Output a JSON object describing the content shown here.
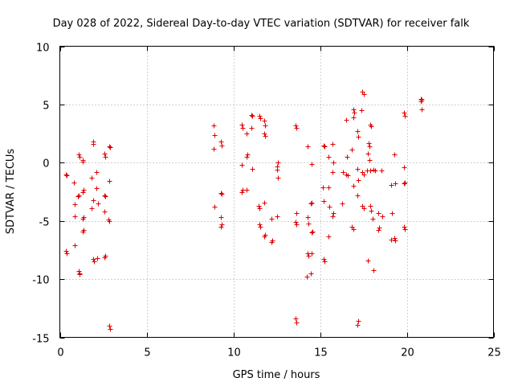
{
  "chart_data": {
    "type": "scatter",
    "title": "Day 028 of 2022, Sidereal Day-to-day VTEC variation (SDTVAR) for receiver falk",
    "xlabel": "GPS time / hours",
    "ylabel": "SDTVAR / TECUs",
    "xlim": [
      0,
      25
    ],
    "ylim": [
      -15,
      10
    ],
    "xticks": [
      0,
      5,
      10,
      15,
      20,
      25
    ],
    "yticks": [
      -15,
      -10,
      -5,
      0,
      5,
      10
    ],
    "x_tick_labels": [
      "0",
      "5",
      "10",
      "15",
      "20",
      "25"
    ],
    "y_tick_labels": [
      "-15",
      "-10",
      "-5",
      "0",
      "5",
      "10"
    ],
    "grid": true,
    "marker": "+",
    "color": "#e00000",
    "series": [
      {
        "name": "SDTVAR",
        "points": [
          [
            0.35,
            -1.0
          ],
          [
            0.4,
            -1.1
          ],
          [
            0.35,
            -7.6
          ],
          [
            0.4,
            -7.8
          ],
          [
            0.8,
            -1.7
          ],
          [
            0.85,
            -3.6
          ],
          [
            0.85,
            -4.6
          ],
          [
            0.85,
            -7.1
          ],
          [
            1.1,
            0.7
          ],
          [
            1.15,
            0.5
          ],
          [
            1.05,
            -2.9
          ],
          [
            1.1,
            -2.8
          ],
          [
            1.1,
            -9.3
          ],
          [
            1.15,
            -9.5
          ],
          [
            1.15,
            -9.6
          ],
          [
            1.3,
            0.2
          ],
          [
            1.3,
            0.1
          ],
          [
            1.35,
            -2.3
          ],
          [
            1.3,
            -2.5
          ],
          [
            1.35,
            -4.7
          ],
          [
            1.3,
            -4.8
          ],
          [
            1.35,
            -5.8
          ],
          [
            1.3,
            -5.9
          ],
          [
            1.9,
            1.8
          ],
          [
            1.9,
            1.6
          ],
          [
            1.85,
            -1.3
          ],
          [
            1.9,
            -3.2
          ],
          [
            1.85,
            -3.9
          ],
          [
            1.9,
            -8.3
          ],
          [
            1.95,
            -8.5
          ],
          [
            2.1,
            -0.8
          ],
          [
            2.1,
            -2.2
          ],
          [
            2.2,
            -3.5
          ],
          [
            2.15,
            -8.2
          ],
          [
            2.55,
            0.8
          ],
          [
            2.6,
            0.5
          ],
          [
            2.55,
            -2.8
          ],
          [
            2.6,
            -2.9
          ],
          [
            2.55,
            -4.2
          ],
          [
            2.6,
            -8.0
          ],
          [
            2.55,
            -8.1
          ],
          [
            2.85,
            1.4
          ],
          [
            2.9,
            1.3
          ],
          [
            2.85,
            -1.6
          ],
          [
            2.8,
            -4.9
          ],
          [
            2.85,
            -5.0
          ],
          [
            2.85,
            -14.0
          ],
          [
            2.9,
            -14.3
          ],
          [
            8.85,
            3.2
          ],
          [
            8.9,
            2.4
          ],
          [
            8.85,
            1.2
          ],
          [
            8.9,
            -3.8
          ],
          [
            9.3,
            1.8
          ],
          [
            9.35,
            1.5
          ],
          [
            9.3,
            -2.6
          ],
          [
            9.35,
            -2.7
          ],
          [
            9.3,
            -4.7
          ],
          [
            9.35,
            -5.3
          ],
          [
            9.3,
            -5.5
          ],
          [
            10.5,
            3.3
          ],
          [
            10.55,
            3.0
          ],
          [
            10.5,
            -0.2
          ],
          [
            10.55,
            -2.3
          ],
          [
            10.5,
            -2.5
          ],
          [
            10.75,
            2.5
          ],
          [
            10.8,
            0.7
          ],
          [
            10.75,
            0.5
          ],
          [
            10.75,
            -2.3
          ],
          [
            11.05,
            4.1
          ],
          [
            11.1,
            4.0
          ],
          [
            11.05,
            3.0
          ],
          [
            11.1,
            -0.5
          ],
          [
            11.5,
            4.0
          ],
          [
            11.55,
            3.8
          ],
          [
            11.45,
            -3.7
          ],
          [
            11.5,
            -3.9
          ],
          [
            11.5,
            -5.3
          ],
          [
            11.55,
            -5.5
          ],
          [
            11.8,
            3.6
          ],
          [
            11.85,
            3.2
          ],
          [
            11.8,
            2.5
          ],
          [
            11.85,
            2.3
          ],
          [
            11.8,
            -3.4
          ],
          [
            11.85,
            -6.2
          ],
          [
            11.8,
            -6.3
          ],
          [
            12.2,
            -4.8
          ],
          [
            12.25,
            -6.7
          ],
          [
            12.2,
            -6.8
          ],
          [
            12.55,
            0.0
          ],
          [
            12.5,
            -0.3
          ],
          [
            12.5,
            -0.6
          ],
          [
            12.55,
            -1.3
          ],
          [
            12.5,
            -4.6
          ],
          [
            13.6,
            3.2
          ],
          [
            13.65,
            3.0
          ],
          [
            13.65,
            -4.3
          ],
          [
            13.6,
            -5.1
          ],
          [
            13.65,
            -5.3
          ],
          [
            13.6,
            -13.4
          ],
          [
            13.65,
            -13.7
          ],
          [
            14.3,
            1.4
          ],
          [
            14.3,
            -4.7
          ],
          [
            14.35,
            -5.2
          ],
          [
            14.3,
            -7.8
          ],
          [
            14.35,
            -8.0
          ],
          [
            14.25,
            -9.8
          ],
          [
            14.5,
            -0.1
          ],
          [
            14.5,
            -3.4
          ],
          [
            14.45,
            -3.5
          ],
          [
            14.55,
            -5.9
          ],
          [
            14.5,
            -6.0
          ],
          [
            14.5,
            -7.8
          ],
          [
            14.45,
            -9.5
          ],
          [
            15.2,
            1.5
          ],
          [
            15.25,
            1.4
          ],
          [
            15.15,
            -2.1
          ],
          [
            15.2,
            -3.3
          ],
          [
            15.2,
            -8.3
          ],
          [
            15.25,
            -8.5
          ],
          [
            15.5,
            0.5
          ],
          [
            15.5,
            -2.1
          ],
          [
            15.55,
            -3.8
          ],
          [
            15.5,
            -6.3
          ],
          [
            15.7,
            1.6
          ],
          [
            15.75,
            0.0
          ],
          [
            15.7,
            -0.8
          ],
          [
            15.75,
            -4.3
          ],
          [
            15.7,
            -4.6
          ],
          [
            16.25,
            -3.5
          ],
          [
            16.3,
            -0.8
          ],
          [
            16.5,
            3.7
          ],
          [
            16.55,
            0.5
          ],
          [
            16.5,
            -1.0
          ],
          [
            16.6,
            -1.1
          ],
          [
            16.9,
            4.6
          ],
          [
            16.95,
            4.3
          ],
          [
            16.9,
            3.9
          ],
          [
            16.85,
            1.1
          ],
          [
            16.9,
            -2.0
          ],
          [
            16.85,
            -5.5
          ],
          [
            16.9,
            -5.7
          ],
          [
            17.15,
            2.7
          ],
          [
            17.2,
            2.2
          ],
          [
            17.15,
            -0.5
          ],
          [
            17.2,
            -1.5
          ],
          [
            17.15,
            -2.8
          ],
          [
            17.2,
            -13.6
          ],
          [
            17.15,
            -13.9
          ],
          [
            17.45,
            6.1
          ],
          [
            17.5,
            5.9
          ],
          [
            17.4,
            4.5
          ],
          [
            17.45,
            -0.8
          ],
          [
            17.5,
            -1.0
          ],
          [
            17.45,
            -3.7
          ],
          [
            17.5,
            -3.9
          ],
          [
            17.8,
            1.7
          ],
          [
            17.85,
            1.4
          ],
          [
            17.75,
            0.8
          ],
          [
            17.7,
            -0.7
          ],
          [
            17.75,
            -8.4
          ],
          [
            17.9,
            3.3
          ],
          [
            17.95,
            3.1
          ],
          [
            17.85,
            0.2
          ],
          [
            17.9,
            -0.7
          ],
          [
            17.9,
            -3.7
          ],
          [
            17.95,
            -4.1
          ],
          [
            18.1,
            -0.6
          ],
          [
            18.15,
            -0.7
          ],
          [
            18.05,
            -4.8
          ],
          [
            18.1,
            -9.2
          ],
          [
            18.35,
            -4.3
          ],
          [
            18.4,
            -5.6
          ],
          [
            18.35,
            -5.8
          ],
          [
            18.55,
            -0.7
          ],
          [
            18.6,
            -4.6
          ],
          [
            19.1,
            -1.9
          ],
          [
            19.15,
            -4.3
          ],
          [
            19.1,
            -6.6
          ],
          [
            19.3,
            0.7
          ],
          [
            19.35,
            -1.8
          ],
          [
            19.3,
            -6.5
          ],
          [
            19.35,
            -6.7
          ],
          [
            19.85,
            4.3
          ],
          [
            19.9,
            4.0
          ],
          [
            19.85,
            -0.4
          ],
          [
            19.9,
            -1.7
          ],
          [
            19.85,
            -1.8
          ],
          [
            19.85,
            -5.5
          ],
          [
            19.9,
            -5.7
          ],
          [
            20.8,
            5.5
          ],
          [
            20.85,
            5.4
          ],
          [
            20.8,
            5.3
          ],
          [
            20.85,
            4.6
          ]
        ]
      }
    ]
  }
}
